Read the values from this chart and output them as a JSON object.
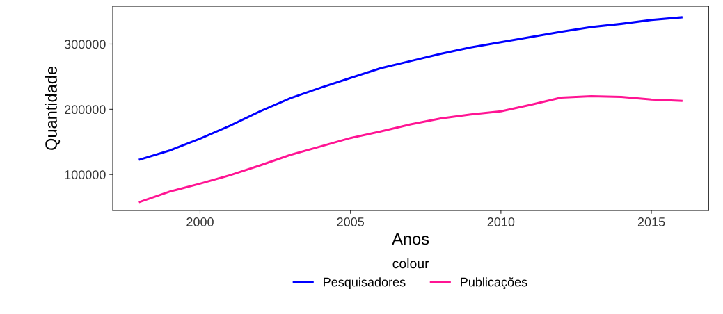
{
  "chart_data": {
    "type": "line",
    "xlabel": "Anos",
    "ylabel": "Quantidade",
    "legend_title": "colour",
    "legend": "bottom",
    "grid": false,
    "x": [
      1998,
      1999,
      2000,
      2001,
      2002,
      2003,
      2004,
      2005,
      2006,
      2007,
      2008,
      2009,
      2010,
      2011,
      2012,
      2013,
      2014,
      2015,
      2016
    ],
    "series": [
      {
        "name": "Pesquisadores",
        "color": "#0000ff",
        "values": [
          123000,
          137000,
          155000,
          175000,
          197000,
          217000,
          233000,
          248000,
          263000,
          274000,
          285000,
          295000,
          303000,
          311000,
          319000,
          326000,
          331000,
          337000,
          341000
        ]
      },
      {
        "name": "Publicações",
        "color": "#ff1493",
        "values": [
          58000,
          74000,
          86000,
          99000,
          114000,
          130000,
          143000,
          156000,
          166000,
          177000,
          186000,
          192000,
          197000,
          207000,
          218000,
          220000,
          219000,
          215000,
          213000
        ]
      }
    ],
    "xlim": [
      1997.1,
      2016.9
    ],
    "ylim": [
      45000,
      358000
    ],
    "xticks": [
      2000,
      2005,
      2010,
      2015
    ],
    "yticks": [
      100000,
      200000,
      300000
    ]
  }
}
